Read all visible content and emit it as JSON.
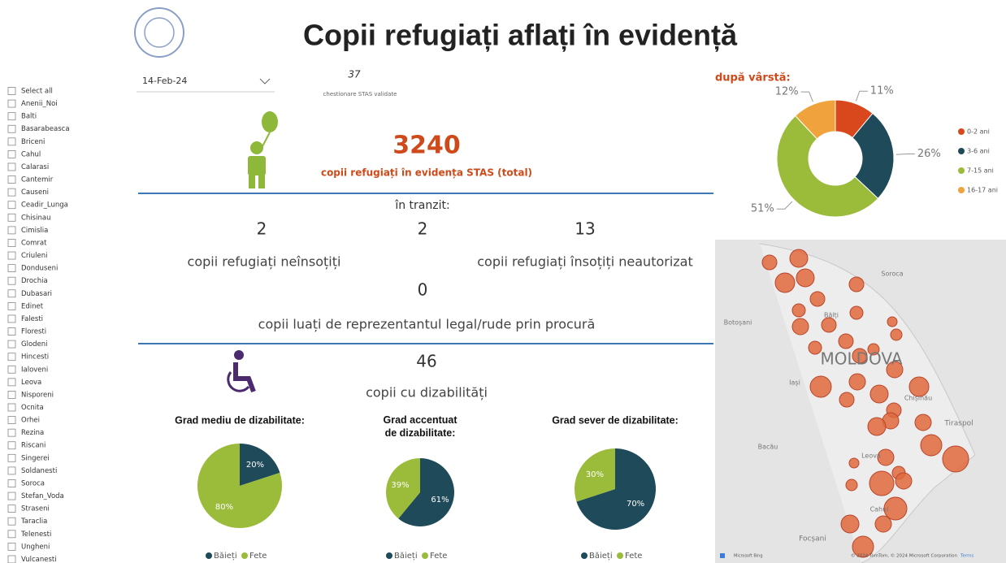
{
  "header": {
    "title": "Copii refugiați aflați în evidență"
  },
  "filter": {
    "items": [
      "Select all",
      "Anenii_Noi",
      "Balti",
      "Basarabeasca",
      "Briceni",
      "Cahul",
      "Calarasi",
      "Cantemir",
      "Causeni",
      "Ceadir_Lunga",
      "Chisinau",
      "Cimislia",
      "Comrat",
      "Criuleni",
      "Donduseni",
      "Drochia",
      "Dubasari",
      "Edinet",
      "Falesti",
      "Floresti",
      "Glodeni",
      "Hincesti",
      "Ialoveni",
      "Leova",
      "Nisporeni",
      "Ocnita",
      "Orhei",
      "Rezina",
      "Riscani",
      "Singerei",
      "Soldanesti",
      "Soroca",
      "Stefan_Voda",
      "Straseni",
      "Taraclia",
      "Telenesti",
      "Ungheni",
      "Vulcanesti"
    ]
  },
  "date": "14-Feb-24",
  "kpis": {
    "questionnaires": {
      "value": "37",
      "label": "chestionare STAS validate"
    },
    "total": {
      "value": "3240",
      "label": "copii refugiați în evidența STAS (total)"
    },
    "transit_label": "în tranzit:",
    "unaccompanied": {
      "value": "2",
      "label": "copii refugiați neînsoțiți"
    },
    "middle": {
      "value": "2"
    },
    "unauthorized": {
      "value": "13",
      "label": "copii refugiați însoțiți neautorizat"
    },
    "proxy": {
      "value": "0",
      "label": "copii luați de reprezentantul legal/rude prin procură"
    },
    "disabled": {
      "value": "46",
      "label": "copii cu dizabilități"
    }
  },
  "chart_data": [
    {
      "type": "donut",
      "title": "după vârstă:",
      "categories": [
        "0-2 ani",
        "3-6 ani",
        "7-15 ani",
        "16-17 ani"
      ],
      "values": [
        11,
        26,
        51,
        12
      ],
      "value_labels": [
        "11%",
        "26%",
        "51%",
        "12%"
      ],
      "colors": [
        "#d9481c",
        "#1f4a59",
        "#9bbb3a",
        "#f0a33c"
      ]
    },
    {
      "type": "pie",
      "title": "Grad mediu de dizabilitate:",
      "categories": [
        "Băieți",
        "Fete"
      ],
      "values": [
        20,
        80
      ],
      "value_labels": [
        "20%",
        "80%"
      ],
      "colors": [
        "#1f4a59",
        "#9bbb3a"
      ]
    },
    {
      "type": "pie",
      "title": "Grad accentuat de dizabilitate:",
      "categories": [
        "Băieți",
        "Fete"
      ],
      "values": [
        61,
        39
      ],
      "value_labels": [
        "61%",
        "39%"
      ],
      "colors": [
        "#1f4a59",
        "#9bbb3a"
      ]
    },
    {
      "type": "pie",
      "title": "Grad sever de dizabilitate:",
      "categories": [
        "Băieți",
        "Fete"
      ],
      "values": [
        70,
        30
      ],
      "value_labels": [
        "70%",
        "30%"
      ],
      "colors": [
        "#1f4a59",
        "#9bbb3a"
      ]
    }
  ],
  "map": {
    "labels": [
      "Soroca",
      "Bălți",
      "Botoșani",
      "MOLDOVA",
      "Iași",
      "Chișinău",
      "Tiraspol",
      "Bacău",
      "Leova",
      "Cahul",
      "Focșani"
    ],
    "attribution": "© 2024 TomTom, © 2024 Microsoft Corporation",
    "terms": "Terms",
    "brand": "Microsoft Bing"
  }
}
